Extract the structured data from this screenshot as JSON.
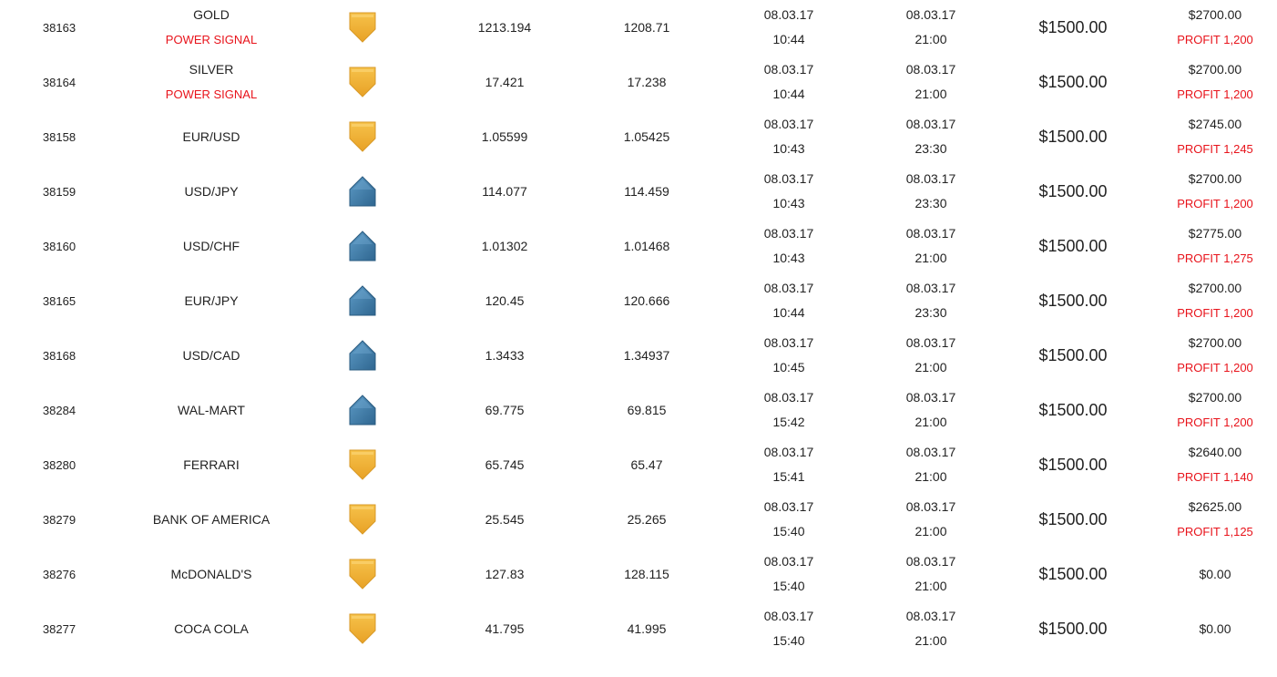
{
  "trades": [
    {
      "id": "38163",
      "asset": "GOLD",
      "signal": "POWER SIGNAL",
      "direction": "down",
      "direction_icon": "down-arrow-icon",
      "open": "1213.194",
      "close": "1208.71",
      "open_date": "08.03.17",
      "open_time": "10:44",
      "expiry_date": "08.03.17",
      "expiry_time": "21:00",
      "investment": "$1500.00",
      "payout": "$2700.00",
      "profit": "PROFIT 1,200"
    },
    {
      "id": "38164",
      "asset": "SILVER",
      "signal": "POWER SIGNAL",
      "direction": "down",
      "direction_icon": "down-arrow-icon",
      "open": "17.421",
      "close": "17.238",
      "open_date": "08.03.17",
      "open_time": "10:44",
      "expiry_date": "08.03.17",
      "expiry_time": "21:00",
      "investment": "$1500.00",
      "payout": "$2700.00",
      "profit": "PROFIT 1,200"
    },
    {
      "id": "38158",
      "asset": "EUR/USD",
      "signal": "",
      "direction": "down",
      "direction_icon": "down-arrow-icon",
      "open": "1.05599",
      "close": "1.05425",
      "open_date": "08.03.17",
      "open_time": "10:43",
      "expiry_date": "08.03.17",
      "expiry_time": "23:30",
      "investment": "$1500.00",
      "payout": "$2745.00",
      "profit": "PROFIT 1,245"
    },
    {
      "id": "38159",
      "asset": "USD/JPY",
      "signal": "",
      "direction": "up",
      "direction_icon": "up-arrow-icon",
      "open": "114.077",
      "close": "114.459",
      "open_date": "08.03.17",
      "open_time": "10:43",
      "expiry_date": "08.03.17",
      "expiry_time": "23:30",
      "investment": "$1500.00",
      "payout": "$2700.00",
      "profit": "PROFIT 1,200"
    },
    {
      "id": "38160",
      "asset": "USD/CHF",
      "signal": "",
      "direction": "up",
      "direction_icon": "up-arrow-icon",
      "open": "1.01302",
      "close": "1.01468",
      "open_date": "08.03.17",
      "open_time": "10:43",
      "expiry_date": "08.03.17",
      "expiry_time": "21:00",
      "investment": "$1500.00",
      "payout": "$2775.00",
      "profit": "PROFIT 1,275"
    },
    {
      "id": "38165",
      "asset": "EUR/JPY",
      "signal": "",
      "direction": "up",
      "direction_icon": "up-arrow-icon",
      "open": "120.45",
      "close": "120.666",
      "open_date": "08.03.17",
      "open_time": "10:44",
      "expiry_date": "08.03.17",
      "expiry_time": "23:30",
      "investment": "$1500.00",
      "payout": "$2700.00",
      "profit": "PROFIT 1,200"
    },
    {
      "id": "38168",
      "asset": "USD/CAD",
      "signal": "",
      "direction": "up",
      "direction_icon": "up-arrow-icon",
      "open": "1.3433",
      "close": "1.34937",
      "open_date": "08.03.17",
      "open_time": "10:45",
      "expiry_date": "08.03.17",
      "expiry_time": "21:00",
      "investment": "$1500.00",
      "payout": "$2700.00",
      "profit": "PROFIT 1,200"
    },
    {
      "id": "38284",
      "asset": "WAL-MART",
      "signal": "",
      "direction": "up",
      "direction_icon": "up-arrow-icon",
      "open": "69.775",
      "close": "69.815",
      "open_date": "08.03.17",
      "open_time": "15:42",
      "expiry_date": "08.03.17",
      "expiry_time": "21:00",
      "investment": "$1500.00",
      "payout": "$2700.00",
      "profit": "PROFIT 1,200"
    },
    {
      "id": "38280",
      "asset": "FERRARI",
      "signal": "",
      "direction": "down",
      "direction_icon": "down-arrow-icon",
      "open": "65.745",
      "close": "65.47",
      "open_date": "08.03.17",
      "open_time": "15:41",
      "expiry_date": "08.03.17",
      "expiry_time": "21:00",
      "investment": "$1500.00",
      "payout": "$2640.00",
      "profit": "PROFIT 1,140"
    },
    {
      "id": "38279",
      "asset": "BANK OF AMERICA",
      "signal": "",
      "direction": "down",
      "direction_icon": "down-arrow-icon",
      "open": "25.545",
      "close": "25.265",
      "open_date": "08.03.17",
      "open_time": "15:40",
      "expiry_date": "08.03.17",
      "expiry_time": "21:00",
      "investment": "$1500.00",
      "payout": "$2625.00",
      "profit": "PROFIT 1,125"
    },
    {
      "id": "38276",
      "asset": "McDONALD'S",
      "signal": "",
      "direction": "down",
      "direction_icon": "down-arrow-icon",
      "open": "127.83",
      "close": "128.115",
      "open_date": "08.03.17",
      "open_time": "15:40",
      "expiry_date": "08.03.17",
      "expiry_time": "21:00",
      "investment": "$1500.00",
      "payout": "$0.00",
      "profit": ""
    },
    {
      "id": "38277",
      "asset": "COCA COLA",
      "signal": "",
      "direction": "down",
      "direction_icon": "down-arrow-icon",
      "open": "41.795",
      "close": "41.995",
      "open_date": "08.03.17",
      "open_time": "15:40",
      "expiry_date": "08.03.17",
      "expiry_time": "21:00",
      "investment": "$1500.00",
      "payout": "$0.00",
      "profit": ""
    }
  ],
  "colors": {
    "profit_red": "#e8131b",
    "down_arrow": "#f0b030",
    "up_arrow": "#3d7aa6"
  }
}
